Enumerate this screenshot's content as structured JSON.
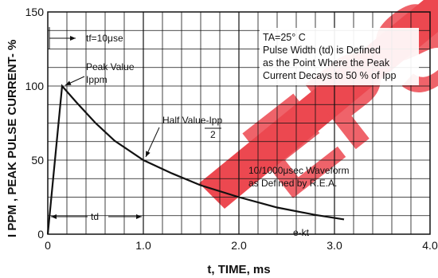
{
  "chart_data": {
    "type": "line",
    "xlabel": "t, TIME, ms",
    "ylabel": "I PPM , PEAK PULSE CURRENT- %",
    "xlim": [
      0,
      4.0
    ],
    "ylim": [
      0,
      150
    ],
    "x_ticks": [
      "0",
      "1.0",
      "2.0",
      "3.0",
      "4.0"
    ],
    "y_ticks": [
      "0",
      "50",
      "100",
      "150"
    ],
    "grid": true,
    "series": [
      {
        "x": [
          0,
          0.15,
          0.3,
          0.5,
          0.7,
          1.0,
          1.3,
          1.6,
          2.0,
          2.4,
          2.8,
          3.1
        ],
        "y": [
          0,
          100,
          89,
          75,
          63,
          50,
          41,
          33,
          25,
          18,
          13,
          10
        ]
      }
    ],
    "annotations": {
      "tf": "tf=10μse",
      "peak_line1": "Peak Value",
      "peak_line2": "Ippm",
      "half_line1": "Half Value-Ipp",
      "half_line2": "2",
      "ta": "TA=25° C",
      "pulse_line1": "Pulse Width (td) is Defined",
      "pulse_line2": "as the Point Where the Peak",
      "pulse_line3": "Current Decays to 50 % of Ipp",
      "waveform_line1": "10/1000μsec Waveform",
      "waveform_line2": "as Defined by R.E.A.",
      "td": "td",
      "ekt": "e-kt"
    },
    "watermark": "EPS",
    "watermark_color": "#e8202a"
  }
}
